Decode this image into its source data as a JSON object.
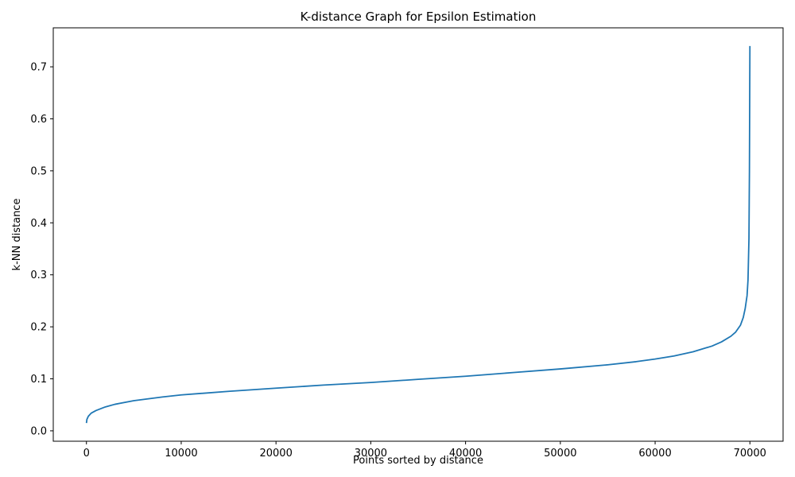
{
  "chart_data": {
    "type": "line",
    "title": "K-distance Graph for Epsilon Estimation",
    "xlabel": "Points sorted by distance",
    "ylabel": "k-NN distance",
    "xlim": [
      -3500,
      73500
    ],
    "ylim": [
      -0.02,
      0.775
    ],
    "xticks": [
      0,
      10000,
      20000,
      30000,
      40000,
      50000,
      60000,
      70000
    ],
    "xtick_labels": [
      "0",
      "10000",
      "20000",
      "30000",
      "40000",
      "50000",
      "60000",
      "70000"
    ],
    "yticks": [
      0.0,
      0.1,
      0.2,
      0.3,
      0.4,
      0.5,
      0.6,
      0.7
    ],
    "ytick_labels": [
      "0.0",
      "0.1",
      "0.2",
      "0.3",
      "0.4",
      "0.5",
      "0.6",
      "0.7"
    ],
    "grid": false,
    "series": [
      {
        "color": "#1f77b4",
        "x": [
          0,
          50,
          200,
          500,
          1000,
          2000,
          3000,
          5000,
          8000,
          10000,
          15000,
          20000,
          25000,
          30000,
          35000,
          40000,
          45000,
          50000,
          55000,
          58000,
          60000,
          62000,
          64000,
          66000,
          67000,
          68000,
          68500,
          69000,
          69300,
          69500,
          69700,
          69800,
          69900,
          69950,
          70000
        ],
        "y": [
          0.015,
          0.022,
          0.028,
          0.034,
          0.039,
          0.046,
          0.051,
          0.058,
          0.065,
          0.069,
          0.076,
          0.082,
          0.088,
          0.093,
          0.099,
          0.105,
          0.112,
          0.119,
          0.127,
          0.133,
          0.138,
          0.144,
          0.152,
          0.163,
          0.171,
          0.182,
          0.19,
          0.203,
          0.218,
          0.235,
          0.26,
          0.29,
          0.37,
          0.5,
          0.74
        ]
      }
    ]
  }
}
